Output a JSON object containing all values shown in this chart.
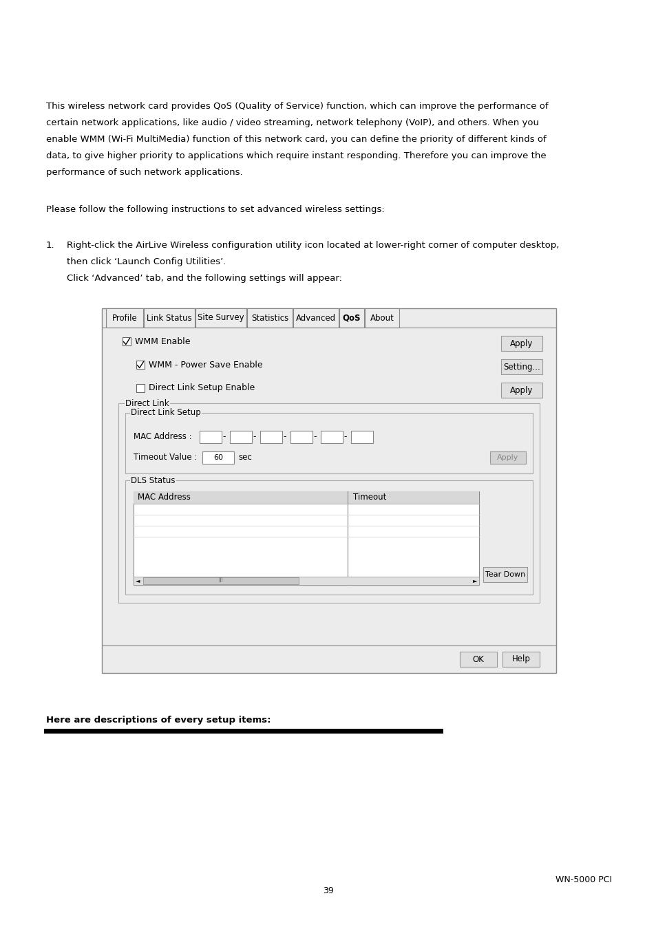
{
  "bg_color": "#ffffff",
  "text_color": "#000000",
  "para1_lines": [
    "This wireless network card provides QoS (Quality of Service) function, which can improve the performance of",
    "certain network applications, like audio / video streaming, network telephony (VoIP), and others. When you",
    "enable WMM (Wi-Fi MultiMedia) function of this network card, you can define the priority of different kinds of",
    "data, to give higher priority to applications which require instant responding. Therefore you can improve the",
    "performance of such network applications."
  ],
  "para2": "Please follow the following instructions to set advanced wireless settings:",
  "list1a": "Right-click the AirLive Wireless configuration utility icon located at lower-right corner of computer desktop,",
  "list1b": "then click ‘Launch Config Utilities’.",
  "list1c": "Click ‘Advanced’ tab, and the following settings will appear:",
  "footer_text": "Here are descriptions of every setup items:",
  "page_number": "39",
  "product_name": "WN-5000 PCI",
  "tab_labels": [
    "Profile",
    "Link Status",
    "Site Survey",
    "Statistics",
    "Advanced",
    "QoS",
    "About"
  ],
  "dialog_bg": "#ececec",
  "button_bg": "#e0e0e0"
}
